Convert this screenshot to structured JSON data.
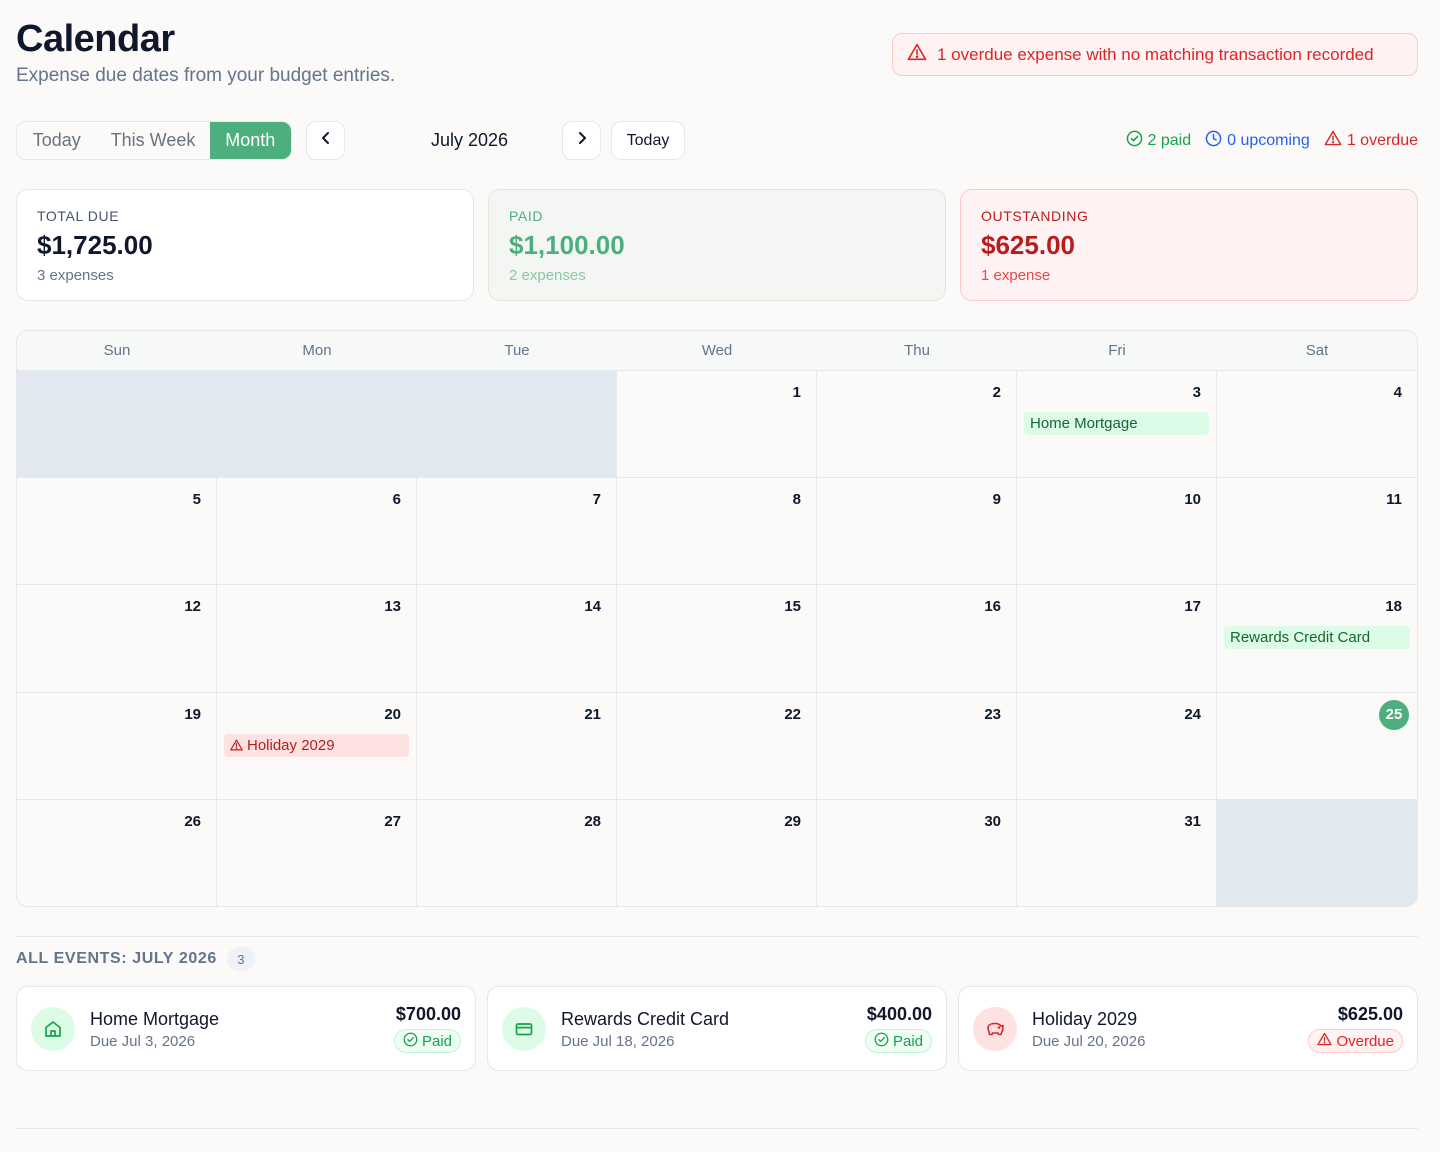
{
  "header": {
    "title": "Calendar",
    "subtitle": "Expense due dates from your budget entries.",
    "alert": "1 overdue expense with no matching transaction recorded"
  },
  "toolbar": {
    "views": [
      "Today",
      "This Week",
      "Month"
    ],
    "active_view": "Month",
    "month_label": "July 2026",
    "today_button": "Today",
    "legend": {
      "paid": "2 paid",
      "upcoming": "0 upcoming",
      "overdue": "1 overdue"
    }
  },
  "summary": {
    "total": {
      "label": "TOTAL DUE",
      "amount": "$1,725.00",
      "sub": "3 expenses"
    },
    "paid": {
      "label": "PAID",
      "amount": "$1,100.00",
      "sub": "2 expenses"
    },
    "outstanding": {
      "label": "OUTSTANDING",
      "amount": "$625.00",
      "sub": "1 expense"
    }
  },
  "calendar": {
    "weekdays": [
      "Sun",
      "Mon",
      "Tue",
      "Wed",
      "Thu",
      "Fri",
      "Sat"
    ],
    "today": 25,
    "cells": [
      "",
      "",
      "",
      "1",
      "2",
      "3",
      "4",
      "5",
      "6",
      "7",
      "8",
      "9",
      "10",
      "11",
      "12",
      "13",
      "14",
      "15",
      "16",
      "17",
      "18",
      "19",
      "20",
      "21",
      "22",
      "23",
      "24",
      "25",
      "26",
      "27",
      "28",
      "29",
      "30",
      "31",
      ""
    ],
    "events": [
      {
        "day": "3",
        "label": "Home Mortgage",
        "status": "paid"
      },
      {
        "day": "18",
        "label": "Rewards Credit Card",
        "status": "paid"
      },
      {
        "day": "20",
        "label": "Holiday 2029",
        "status": "overdue"
      }
    ]
  },
  "events_list": {
    "title": "ALL EVENTS: JULY 2026",
    "count": "3",
    "items": [
      {
        "name": "Home Mortgage",
        "due": "Due Jul 3, 2026",
        "amount": "$700.00",
        "status": "Paid",
        "icon": "home-icon"
      },
      {
        "name": "Rewards Credit Card",
        "due": "Due Jul 18, 2026",
        "amount": "$400.00",
        "status": "Paid",
        "icon": "credit-card-icon"
      },
      {
        "name": "Holiday 2029",
        "due": "Due Jul 20, 2026",
        "amount": "$625.00",
        "status": "Overdue",
        "icon": "piggy-bank-icon"
      }
    ]
  },
  "colors": {
    "accent": "#4caf7d",
    "paid": "#16a34a",
    "upcoming": "#2563eb",
    "overdue": "#dc2626"
  }
}
